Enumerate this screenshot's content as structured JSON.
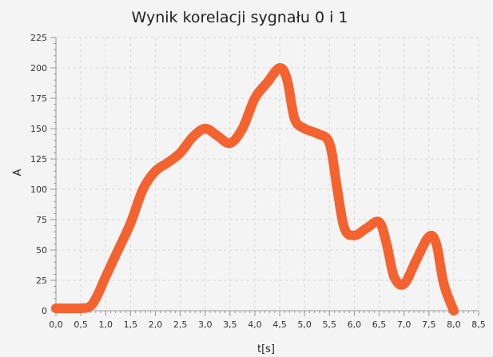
{
  "chart_data": {
    "type": "line",
    "title": "Wynik korelacji sygnału 0 i 1",
    "xlabel": "t[s]",
    "ylabel": "A",
    "xlim": [
      0,
      8.5
    ],
    "ylim": [
      0,
      225
    ],
    "x_ticks": [
      0,
      0.5,
      1,
      1.5,
      2,
      2.5,
      3,
      3.5,
      4,
      4.5,
      5,
      5.5,
      6,
      6.5,
      7,
      7.5,
      8,
      8.5
    ],
    "x_tick_labels": [
      "0,0",
      "0,5",
      "1,0",
      "1,5",
      "2,0",
      "2,5",
      "3,0",
      "3,5",
      "4,0",
      "4,5",
      "5,0",
      "5,5",
      "6,0",
      "6,5",
      "7,0",
      "7,5",
      "8,0",
      "8,5"
    ],
    "y_ticks": [
      0,
      25,
      50,
      75,
      100,
      125,
      150,
      175,
      200,
      225
    ],
    "y_tick_labels": [
      "0",
      "25",
      "50",
      "75",
      "100",
      "125",
      "150",
      "175",
      "200",
      "225"
    ],
    "grid": true,
    "legend": "none",
    "series_color": "#f46230",
    "series": [
      {
        "x": [
          0,
          0.5,
          0.7,
          0.85,
          1.0,
          1.25,
          1.5,
          1.75,
          2.0,
          2.25,
          2.5,
          2.75,
          3.0,
          3.25,
          3.5,
          3.75,
          4.0,
          4.25,
          4.5,
          4.65,
          4.8,
          5.0,
          5.25,
          5.5,
          5.65,
          5.8,
          6.0,
          6.25,
          6.5,
          6.65,
          6.8,
          7.0,
          7.25,
          7.5,
          7.65,
          7.8,
          8.0
        ],
        "y": [
          2,
          2,
          4,
          14,
          28,
          50,
          72,
          100,
          115,
          122,
          130,
          143,
          150,
          144,
          138,
          150,
          175,
          188,
          200,
          190,
          158,
          150,
          146,
          138,
          102,
          68,
          62,
          68,
          73,
          55,
          28,
          22,
          42,
          61,
          55,
          22,
          0
        ]
      }
    ]
  }
}
